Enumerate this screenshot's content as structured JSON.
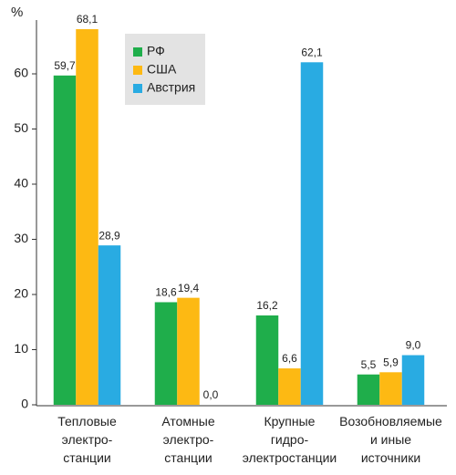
{
  "chart_data": {
    "type": "bar",
    "y_label": "%",
    "categories": [
      "Тепловые\nэлектро-\nстанции",
      "Атомные\nэлектро-\nстанции",
      "Крупные\nгидро-\nэлектростанции",
      "Возобновляемые\nи иные\nисточники"
    ],
    "series": [
      {
        "name": "РФ",
        "color": "#1fae4b",
        "values": [
          59.7,
          18.6,
          16.2,
          5.5
        ],
        "value_labels": [
          "59,7",
          "18,6",
          "16,2",
          "5,5"
        ]
      },
      {
        "name": "США",
        "color": "#fdb913",
        "values": [
          68.1,
          19.4,
          6.6,
          5.9
        ],
        "value_labels": [
          "68,1",
          "19,4",
          "6,6",
          "5,9"
        ]
      },
      {
        "name": "Австрия",
        "color": "#29abe2",
        "values": [
          28.9,
          0.0,
          62.1,
          9.0
        ],
        "value_labels": [
          "28,9",
          "0,0",
          "62,1",
          "9,0"
        ]
      }
    ],
    "ylim": [
      0,
      70
    ],
    "yticks": [
      0,
      10,
      20,
      30,
      40,
      50,
      60
    ],
    "grid": false,
    "legend": "top-left"
  }
}
